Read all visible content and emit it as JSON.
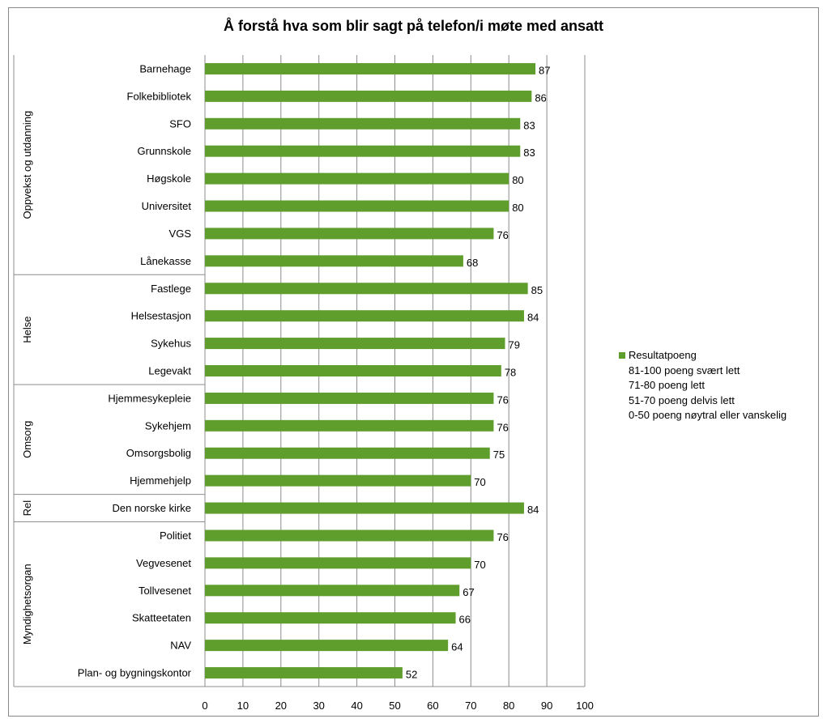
{
  "chart_data": {
    "type": "bar",
    "orientation": "horizontal",
    "title": "Å forstå hva som blir sagt på telefon/i møte med ansatt",
    "xlabel": "",
    "ylabel": "",
    "xlim": [
      0,
      100
    ],
    "x_ticks": [
      0,
      10,
      20,
      30,
      40,
      50,
      60,
      70,
      80,
      90,
      100
    ],
    "grid": true,
    "legend_position": "right",
    "bar_color": "#5f9e2c",
    "categories": [
      "Barnehage",
      "Folkebibliotek",
      "SFO",
      "Grunnskole",
      "Høgskole",
      "Universitet",
      "VGS",
      "Lånekasse",
      "Fastlege",
      "Helsestasjon",
      "Sykehus",
      "Legevakt",
      "Hjemmesykepleie",
      "Sykehjem",
      "Omsorgsbolig",
      "Hjemmehjelp",
      "Den norske kirke",
      "Politiet",
      "Vegvesenet",
      "Tollvesenet",
      "Skatteetaten",
      "NAV",
      "Plan- og bygningskontor"
    ],
    "groups": [
      {
        "label": "Oppvekst og utdanning",
        "count": 8
      },
      {
        "label": "Helse",
        "count": 4
      },
      {
        "label": "Omsorg",
        "count": 4
      },
      {
        "label": "Rel",
        "count": 1
      },
      {
        "label": "Myndighetsorgan",
        "count": 6
      }
    ],
    "series": [
      {
        "name": "Resultatpoeng",
        "values": [
          87,
          86,
          83,
          83,
          80,
          80,
          76,
          68,
          85,
          84,
          79,
          78,
          76,
          76,
          75,
          70,
          84,
          76,
          70,
          67,
          66,
          64,
          52
        ]
      }
    ],
    "legend": {
      "series_label": "Resultatpoeng",
      "notes": [
        "81-100 poeng svært lett",
        "71-80 poeng lett",
        "51-70 poeng delvis lett",
        "0-50 poeng nøytral eller vanskelig"
      ]
    }
  }
}
